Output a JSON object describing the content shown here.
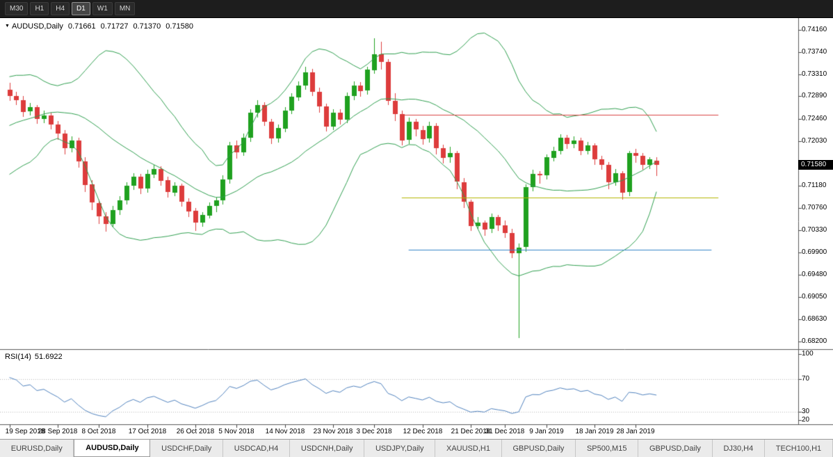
{
  "toolbar": {
    "timeframes": [
      {
        "label": "M30",
        "active": false
      },
      {
        "label": "H1",
        "active": false
      },
      {
        "label": "H4",
        "active": false
      },
      {
        "label": "D1",
        "active": true
      },
      {
        "label": "W1",
        "active": false
      },
      {
        "label": "MN",
        "active": false
      }
    ]
  },
  "chart": {
    "title": {
      "symbol": "AUDUSD,Daily",
      "open": "0.71661",
      "high": "0.71727",
      "low": "0.71370",
      "close": "0.71580"
    },
    "price_axis": {
      "max": 0.7416,
      "min": 0.682,
      "current_price": "0.71580",
      "ticks": [
        "0.74160",
        "0.73740",
        "0.73310",
        "0.72890",
        "0.72460",
        "0.72030",
        "0.71180",
        "0.70760",
        "0.70330",
        "0.69900",
        "0.69480",
        "0.69050",
        "0.68630",
        "0.68200"
      ]
    },
    "time_axis": {
      "ticks": [
        {
          "index": 0,
          "label": "19 Sep 2018"
        },
        {
          "index": 7,
          "label": "28 Sep 2018"
        },
        {
          "index": 13,
          "label": "8 Oct 2018"
        },
        {
          "index": 20,
          "label": "17 Oct 2018"
        },
        {
          "index": 27,
          "label": "26 Oct 2018"
        },
        {
          "index": 33,
          "label": "5 Nov 2018"
        },
        {
          "index": 40,
          "label": "14 Nov 2018"
        },
        {
          "index": 47,
          "label": "23 Nov 2018"
        },
        {
          "index": 53,
          "label": "3 Dec 2018"
        },
        {
          "index": 60,
          "label": "12 Dec 2018"
        },
        {
          "index": 67,
          "label": "21 Dec 2018"
        },
        {
          "index": 72,
          "label": "31 Dec 2018"
        },
        {
          "index": 78,
          "label": "9 Jan 2019"
        },
        {
          "index": 85,
          "label": "18 Jan 2019"
        },
        {
          "index": 91,
          "label": "28 Jan 2019"
        }
      ]
    },
    "hlines": [
      {
        "name": "resistance-line",
        "color": "#d84040",
        "price": 0.7254,
        "start_index": 57,
        "end_index": 103
      },
      {
        "name": "middle-line",
        "color": "#b2b400",
        "price": 0.7095,
        "start_index": 57,
        "end_index": 103
      },
      {
        "name": "support-line",
        "color": "#3585c9",
        "price": 0.6996,
        "start_index": 58,
        "end_index": 102
      }
    ],
    "colors": {
      "candle_up": "#1fa11f",
      "candle_down": "#dd3c3c",
      "bollinger": "#2e9e4e",
      "rsi_line": "#4f81bd"
    },
    "indicators": {
      "bollinger": {
        "period": 20,
        "deviation": 2
      },
      "rsi": {
        "label": "RSI(14)",
        "value": "51.6922",
        "period": 14,
        "levels": [
          70,
          30
        ],
        "axis_ticks": [
          "100",
          "70",
          "30",
          "20"
        ]
      }
    },
    "indicator_warmup_closes": [
      0.7165,
      0.7178,
      0.7192,
      0.717,
      0.7158,
      0.7182,
      0.7198,
      0.7215,
      0.7232,
      0.7224,
      0.7248,
      0.726,
      0.7246,
      0.7268,
      0.7284,
      0.727,
      0.7288,
      0.7294,
      0.7298
    ],
    "candles": [
      [
        0.7302,
        0.7315,
        0.728,
        0.729
      ],
      [
        0.729,
        0.7298,
        0.7272,
        0.7282
      ],
      [
        0.7282,
        0.729,
        0.725,
        0.726
      ],
      [
        0.726,
        0.7276,
        0.7252,
        0.7268
      ],
      [
        0.7268,
        0.7272,
        0.7236,
        0.7245
      ],
      [
        0.7245,
        0.7262,
        0.7238,
        0.7252
      ],
      [
        0.7252,
        0.7258,
        0.7226,
        0.7235
      ],
      [
        0.7235,
        0.7242,
        0.7206,
        0.7218
      ],
      [
        0.7218,
        0.7225,
        0.7178,
        0.719
      ],
      [
        0.719,
        0.7212,
        0.7182,
        0.7205
      ],
      [
        0.7205,
        0.721,
        0.7152,
        0.7165
      ],
      [
        0.7165,
        0.7172,
        0.7106,
        0.712
      ],
      [
        0.712,
        0.7128,
        0.7072,
        0.7085
      ],
      [
        0.7085,
        0.7092,
        0.7045,
        0.706
      ],
      [
        0.706,
        0.7068,
        0.703,
        0.7045
      ],
      [
        0.7045,
        0.708,
        0.7038,
        0.7072
      ],
      [
        0.7072,
        0.7098,
        0.7062,
        0.709
      ],
      [
        0.709,
        0.7125,
        0.7082,
        0.7118
      ],
      [
        0.7118,
        0.7142,
        0.711,
        0.7135
      ],
      [
        0.7135,
        0.714,
        0.7102,
        0.7112
      ],
      [
        0.7112,
        0.7148,
        0.7105,
        0.714
      ],
      [
        0.714,
        0.7158,
        0.7132,
        0.715
      ],
      [
        0.715,
        0.7155,
        0.7118,
        0.7128
      ],
      [
        0.7128,
        0.7135,
        0.7095,
        0.7105
      ],
      [
        0.7105,
        0.7125,
        0.7098,
        0.7118
      ],
      [
        0.7118,
        0.7122,
        0.7078,
        0.7088
      ],
      [
        0.7088,
        0.7094,
        0.7058,
        0.707
      ],
      [
        0.707,
        0.7076,
        0.7032,
        0.7048
      ],
      [
        0.7048,
        0.7068,
        0.704,
        0.7062
      ],
      [
        0.7062,
        0.7086,
        0.7055,
        0.708
      ],
      [
        0.708,
        0.7096,
        0.7068,
        0.709
      ],
      [
        0.709,
        0.7138,
        0.7082,
        0.713
      ],
      [
        0.713,
        0.7202,
        0.7122,
        0.7195
      ],
      [
        0.7195,
        0.7205,
        0.717,
        0.7182
      ],
      [
        0.7182,
        0.7218,
        0.7175,
        0.721
      ],
      [
        0.721,
        0.7265,
        0.7202,
        0.7258
      ],
      [
        0.7258,
        0.7282,
        0.7248,
        0.7272
      ],
      [
        0.7272,
        0.7278,
        0.7232,
        0.724
      ],
      [
        0.724,
        0.7246,
        0.7198,
        0.7208
      ],
      [
        0.7208,
        0.7235,
        0.72,
        0.7228
      ],
      [
        0.7228,
        0.7268,
        0.722,
        0.7262
      ],
      [
        0.7262,
        0.7295,
        0.7255,
        0.7288
      ],
      [
        0.7288,
        0.7318,
        0.728,
        0.731
      ],
      [
        0.731,
        0.7345,
        0.7302,
        0.7335
      ],
      [
        0.7335,
        0.7342,
        0.729,
        0.7298
      ],
      [
        0.7298,
        0.7305,
        0.7258,
        0.727
      ],
      [
        0.727,
        0.7275,
        0.7222,
        0.7232
      ],
      [
        0.7232,
        0.7265,
        0.7225,
        0.7258
      ],
      [
        0.7258,
        0.7264,
        0.7235,
        0.7245
      ],
      [
        0.7245,
        0.7296,
        0.7238,
        0.729
      ],
      [
        0.729,
        0.7318,
        0.7282,
        0.731
      ],
      [
        0.731,
        0.7316,
        0.7288,
        0.73
      ],
      [
        0.73,
        0.7346,
        0.7292,
        0.734
      ],
      [
        0.734,
        0.74,
        0.7332,
        0.737
      ],
      [
        0.737,
        0.7394,
        0.734,
        0.7355
      ],
      [
        0.7355,
        0.736,
        0.7272,
        0.728
      ],
      [
        0.728,
        0.7295,
        0.7242,
        0.7255
      ],
      [
        0.7255,
        0.7262,
        0.7195,
        0.7205
      ],
      [
        0.7205,
        0.7248,
        0.7198,
        0.724
      ],
      [
        0.724,
        0.7246,
        0.7212,
        0.7225
      ],
      [
        0.7225,
        0.7232,
        0.7196,
        0.7208
      ],
      [
        0.7208,
        0.724,
        0.72,
        0.7232
      ],
      [
        0.7232,
        0.7238,
        0.7178,
        0.719
      ],
      [
        0.719,
        0.7196,
        0.716,
        0.7172
      ],
      [
        0.7172,
        0.7192,
        0.7162,
        0.718
      ],
      [
        0.718,
        0.7185,
        0.7112,
        0.7125
      ],
      [
        0.7125,
        0.7132,
        0.7075,
        0.7088
      ],
      [
        0.7088,
        0.7092,
        0.7032,
        0.7042
      ],
      [
        0.7042,
        0.7058,
        0.7035,
        0.7048
      ],
      [
        0.7048,
        0.7052,
        0.7022,
        0.7035
      ],
      [
        0.7035,
        0.7065,
        0.7028,
        0.7058
      ],
      [
        0.7058,
        0.7062,
        0.7032,
        0.7042
      ],
      [
        0.7042,
        0.7052,
        0.7018,
        0.7028
      ],
      [
        0.7028,
        0.7036,
        0.698,
        0.699
      ],
      [
        0.699,
        0.7008,
        0.6826,
        0.7
      ],
      [
        0.7,
        0.712,
        0.6992,
        0.7115
      ],
      [
        0.7115,
        0.7148,
        0.7108,
        0.714
      ],
      [
        0.714,
        0.7146,
        0.7122,
        0.7138
      ],
      [
        0.7138,
        0.7178,
        0.713,
        0.7172
      ],
      [
        0.7172,
        0.7192,
        0.7165,
        0.7185
      ],
      [
        0.7185,
        0.7216,
        0.7178,
        0.721
      ],
      [
        0.721,
        0.7215,
        0.7188,
        0.7198
      ],
      [
        0.7198,
        0.7212,
        0.719,
        0.7205
      ],
      [
        0.7205,
        0.721,
        0.7176,
        0.7185
      ],
      [
        0.7185,
        0.7202,
        0.7178,
        0.7195
      ],
      [
        0.7195,
        0.7199,
        0.7158,
        0.7168
      ],
      [
        0.7168,
        0.7175,
        0.7148,
        0.7158
      ],
      [
        0.7158,
        0.7163,
        0.7112,
        0.7125
      ],
      [
        0.7125,
        0.715,
        0.7118,
        0.7142
      ],
      [
        0.7142,
        0.7146,
        0.7092,
        0.7105
      ],
      [
        0.7105,
        0.7185,
        0.7098,
        0.718
      ],
      [
        0.718,
        0.7188,
        0.7162,
        0.7175
      ],
      [
        0.7175,
        0.718,
        0.7148,
        0.7158
      ],
      [
        0.7158,
        0.7172,
        0.715,
        0.7168
      ],
      [
        0.71661,
        0.71727,
        0.7137,
        0.7158
      ]
    ]
  },
  "bottom_tabs": {
    "items": [
      {
        "label": "EURUSD,Daily",
        "active": false
      },
      {
        "label": "AUDUSD,Daily",
        "active": true
      },
      {
        "label": "USDCHF,Daily",
        "active": false
      },
      {
        "label": "USDCAD,H4",
        "active": false
      },
      {
        "label": "USDCNH,Daily",
        "active": false
      },
      {
        "label": "USDJPY,Daily",
        "active": false
      },
      {
        "label": "XAUUSD,H1",
        "active": false
      },
      {
        "label": "GBPUSD,Daily",
        "active": false
      },
      {
        "label": "SP500,M15",
        "active": false
      },
      {
        "label": "GBPUSD,Daily",
        "active": false
      },
      {
        "label": "DJ30,H4",
        "active": false
      },
      {
        "label": "TECH100,H1",
        "active": false
      }
    ]
  }
}
